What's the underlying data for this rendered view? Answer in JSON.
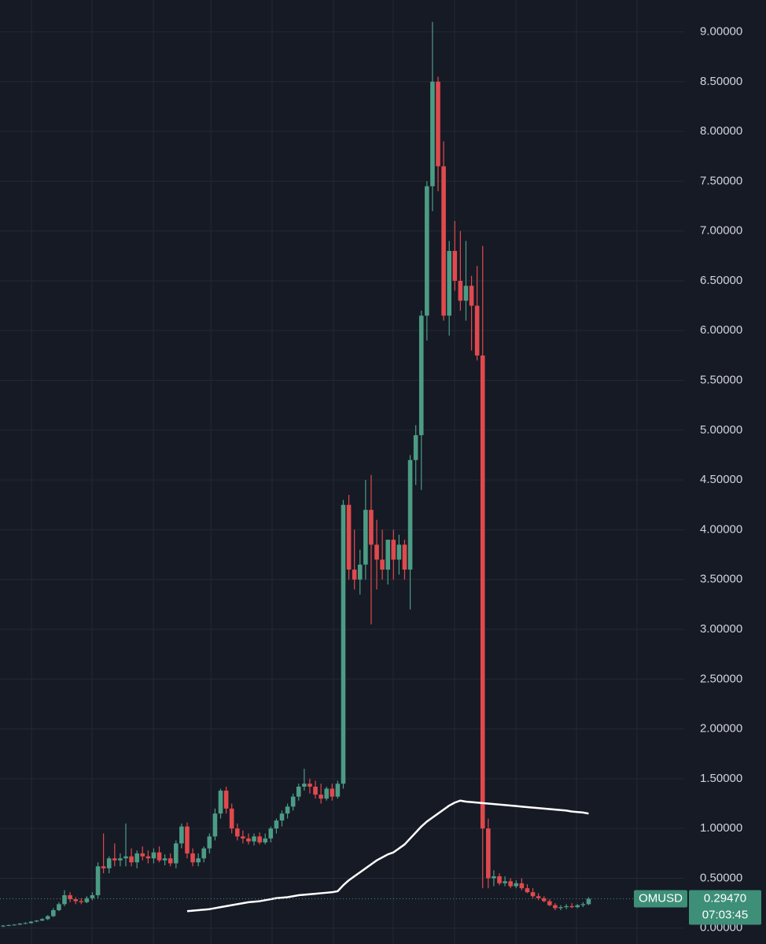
{
  "chart_data": {
    "type": "candlestick",
    "ylim": [
      -0.16,
      9.32
    ],
    "yticks": [
      {
        "value": 0,
        "label": "0.00000"
      },
      {
        "value": 0.5,
        "label": "0.50000"
      },
      {
        "value": 1,
        "label": "1.00000"
      },
      {
        "value": 1.5,
        "label": "1.50000"
      },
      {
        "value": 2,
        "label": "2.00000"
      },
      {
        "value": 2.5,
        "label": "2.50000"
      },
      {
        "value": 3,
        "label": "3.00000"
      },
      {
        "value": 3.5,
        "label": "3.50000"
      },
      {
        "value": 4,
        "label": "4.00000"
      },
      {
        "value": 4.5,
        "label": "4.50000"
      },
      {
        "value": 5,
        "label": "5.00000"
      },
      {
        "value": 5.5,
        "label": "5.50000"
      },
      {
        "value": 6,
        "label": "6.00000"
      },
      {
        "value": 6.5,
        "label": "6.50000"
      },
      {
        "value": 7,
        "label": "7.00000"
      },
      {
        "value": 7.5,
        "label": "7.50000"
      },
      {
        "value": 8,
        "label": "8.00000"
      },
      {
        "value": 8.5,
        "label": "8.50000"
      },
      {
        "value": 9,
        "label": "9.00000"
      }
    ],
    "grid": true,
    "up_color": "#4c9c85",
    "down_color": "#e04a4d",
    "ohlc": [
      [
        0.02,
        0.03,
        0.01,
        0.025
      ],
      [
        0.025,
        0.035,
        0.02,
        0.03
      ],
      [
        0.03,
        0.04,
        0.025,
        0.035
      ],
      [
        0.035,
        0.05,
        0.03,
        0.045
      ],
      [
        0.045,
        0.06,
        0.04,
        0.05
      ],
      [
        0.05,
        0.07,
        0.045,
        0.065
      ],
      [
        0.065,
        0.08,
        0.06,
        0.075
      ],
      [
        0.075,
        0.1,
        0.07,
        0.09
      ],
      [
        0.09,
        0.13,
        0.08,
        0.12
      ],
      [
        0.12,
        0.2,
        0.11,
        0.18
      ],
      [
        0.18,
        0.26,
        0.17,
        0.24
      ],
      [
        0.24,
        0.38,
        0.22,
        0.33
      ],
      [
        0.33,
        0.36,
        0.26,
        0.29
      ],
      [
        0.29,
        0.31,
        0.24,
        0.27
      ],
      [
        0.27,
        0.3,
        0.24,
        0.26
      ],
      [
        0.26,
        0.32,
        0.25,
        0.3
      ],
      [
        0.3,
        0.36,
        0.28,
        0.33
      ],
      [
        0.33,
        0.66,
        0.3,
        0.62
      ],
      [
        0.62,
        0.95,
        0.55,
        0.6
      ],
      [
        0.6,
        0.72,
        0.55,
        0.7
      ],
      [
        0.7,
        0.85,
        0.62,
        0.68
      ],
      [
        0.68,
        0.75,
        0.62,
        0.7
      ],
      [
        0.7,
        1.05,
        0.62,
        0.72
      ],
      [
        0.72,
        0.8,
        0.62,
        0.66
      ],
      [
        0.66,
        0.78,
        0.6,
        0.75
      ],
      [
        0.75,
        0.82,
        0.68,
        0.72
      ],
      [
        0.72,
        0.78,
        0.65,
        0.7
      ],
      [
        0.7,
        0.8,
        0.65,
        0.76
      ],
      [
        0.76,
        0.82,
        0.66,
        0.68
      ],
      [
        0.68,
        0.74,
        0.63,
        0.7
      ],
      [
        0.7,
        0.75,
        0.62,
        0.65
      ],
      [
        0.65,
        0.88,
        0.6,
        0.85
      ],
      [
        0.85,
        1.05,
        0.8,
        1.02
      ],
      [
        1.02,
        1.06,
        0.7,
        0.75
      ],
      [
        0.75,
        0.8,
        0.62,
        0.66
      ],
      [
        0.66,
        0.75,
        0.62,
        0.7
      ],
      [
        0.7,
        0.82,
        0.66,
        0.8
      ],
      [
        0.8,
        0.95,
        0.75,
        0.92
      ],
      [
        0.92,
        1.2,
        0.88,
        1.15
      ],
      [
        1.15,
        1.4,
        1.1,
        1.38
      ],
      [
        1.38,
        1.42,
        1.15,
        1.2
      ],
      [
        1.2,
        1.25,
        0.95,
        1.0
      ],
      [
        1.0,
        1.05,
        0.88,
        0.92
      ],
      [
        0.92,
        0.98,
        0.85,
        0.9
      ],
      [
        0.9,
        0.95,
        0.84,
        0.87
      ],
      [
        0.87,
        0.95,
        0.83,
        0.92
      ],
      [
        0.92,
        0.96,
        0.84,
        0.86
      ],
      [
        0.86,
        0.95,
        0.84,
        0.9
      ],
      [
        0.9,
        1.02,
        0.86,
        1.0
      ],
      [
        1.0,
        1.1,
        0.95,
        1.08
      ],
      [
        1.08,
        1.18,
        1.02,
        1.15
      ],
      [
        1.15,
        1.25,
        1.1,
        1.22
      ],
      [
        1.22,
        1.35,
        1.18,
        1.32
      ],
      [
        1.32,
        1.45,
        1.28,
        1.42
      ],
      [
        1.42,
        1.6,
        1.38,
        1.45
      ],
      [
        1.45,
        1.5,
        1.35,
        1.42
      ],
      [
        1.42,
        1.48,
        1.3,
        1.34
      ],
      [
        1.34,
        1.45,
        1.25,
        1.3
      ],
      [
        1.3,
        1.42,
        1.28,
        1.4
      ],
      [
        1.4,
        1.45,
        1.28,
        1.32
      ],
      [
        1.32,
        1.48,
        1.3,
        1.45
      ],
      [
        1.45,
        4.3,
        1.4,
        4.25
      ],
      [
        4.25,
        4.35,
        3.5,
        3.6
      ],
      [
        3.6,
        4.0,
        3.4,
        3.5
      ],
      [
        3.5,
        3.8,
        3.35,
        3.65
      ],
      [
        3.65,
        4.5,
        3.5,
        4.2
      ],
      [
        4.2,
        4.55,
        3.05,
        3.85
      ],
      [
        3.85,
        4.1,
        3.4,
        3.7
      ],
      [
        3.7,
        4.0,
        3.5,
        3.6
      ],
      [
        3.6,
        3.9,
        3.45,
        3.9
      ],
      [
        3.9,
        4.0,
        3.5,
        3.7
      ],
      [
        3.7,
        3.95,
        3.55,
        3.85
      ],
      [
        3.85,
        3.9,
        3.5,
        3.6
      ],
      [
        3.6,
        4.75,
        3.2,
        4.7
      ],
      [
        4.7,
        5.05,
        4.45,
        4.95
      ],
      [
        4.95,
        6.2,
        4.4,
        6.15
      ],
      [
        6.15,
        7.5,
        5.9,
        7.45
      ],
      [
        7.45,
        9.1,
        7.2,
        8.5
      ],
      [
        8.5,
        8.55,
        7.4,
        7.65
      ],
      [
        7.65,
        7.9,
        6.1,
        6.15
      ],
      [
        6.15,
        6.9,
        5.95,
        6.8
      ],
      [
        6.8,
        7.1,
        6.4,
        6.5
      ],
      [
        6.5,
        7.0,
        6.2,
        6.3
      ],
      [
        6.3,
        6.9,
        6.1,
        6.45
      ],
      [
        6.45,
        6.55,
        5.8,
        6.25
      ],
      [
        6.25,
        6.65,
        5.7,
        5.75
      ],
      [
        5.75,
        6.85,
        0.4,
        1.0
      ],
      [
        1.0,
        1.1,
        0.4,
        0.5
      ],
      [
        0.5,
        0.58,
        0.42,
        0.52
      ],
      [
        0.52,
        0.55,
        0.43,
        0.45
      ],
      [
        0.45,
        0.52,
        0.42,
        0.47
      ],
      [
        0.47,
        0.5,
        0.4,
        0.42
      ],
      [
        0.42,
        0.48,
        0.4,
        0.45
      ],
      [
        0.45,
        0.5,
        0.38,
        0.4
      ],
      [
        0.4,
        0.44,
        0.35,
        0.36
      ],
      [
        0.36,
        0.4,
        0.3,
        0.32
      ],
      [
        0.32,
        0.35,
        0.28,
        0.3
      ],
      [
        0.3,
        0.32,
        0.26,
        0.27
      ],
      [
        0.27,
        0.29,
        0.22,
        0.23
      ],
      [
        0.23,
        0.25,
        0.18,
        0.2
      ],
      [
        0.2,
        0.23,
        0.18,
        0.21
      ],
      [
        0.21,
        0.24,
        0.19,
        0.22
      ],
      [
        0.22,
        0.25,
        0.2,
        0.21
      ],
      [
        0.21,
        0.24,
        0.2,
        0.23
      ],
      [
        0.23,
        0.26,
        0.21,
        0.24
      ],
      [
        0.24,
        0.31,
        0.23,
        0.2947
      ]
    ],
    "overlay": {
      "color": "#ffffff",
      "values": [
        null,
        null,
        null,
        null,
        null,
        null,
        null,
        null,
        null,
        null,
        null,
        null,
        null,
        null,
        null,
        null,
        null,
        null,
        null,
        null,
        null,
        null,
        null,
        null,
        null,
        null,
        null,
        null,
        null,
        null,
        null,
        null,
        null,
        0.17,
        0.175,
        0.18,
        0.185,
        0.19,
        0.2,
        0.21,
        0.22,
        0.23,
        0.24,
        0.25,
        0.26,
        0.265,
        0.27,
        0.28,
        0.29,
        0.3,
        0.305,
        0.31,
        0.32,
        0.33,
        0.335,
        0.34,
        0.345,
        0.35,
        0.355,
        0.36,
        0.37,
        0.43,
        0.48,
        0.52,
        0.56,
        0.6,
        0.64,
        0.68,
        0.71,
        0.74,
        0.76,
        0.8,
        0.84,
        0.9,
        0.96,
        1.02,
        1.07,
        1.11,
        1.15,
        1.19,
        1.23,
        1.26,
        1.28,
        1.27,
        1.265,
        1.26,
        1.255,
        1.25,
        1.245,
        1.24,
        1.235,
        1.23,
        1.225,
        1.22,
        1.215,
        1.21,
        1.205,
        1.2,
        1.195,
        1.19,
        1.185,
        1.18,
        1.17,
        1.165,
        1.16,
        1.15
      ]
    },
    "last_price": {
      "symbol": "OMUSD",
      "value": 0.2947,
      "label": "0.29470",
      "countdown": "07:03:45",
      "color": "#3d8f77"
    }
  }
}
